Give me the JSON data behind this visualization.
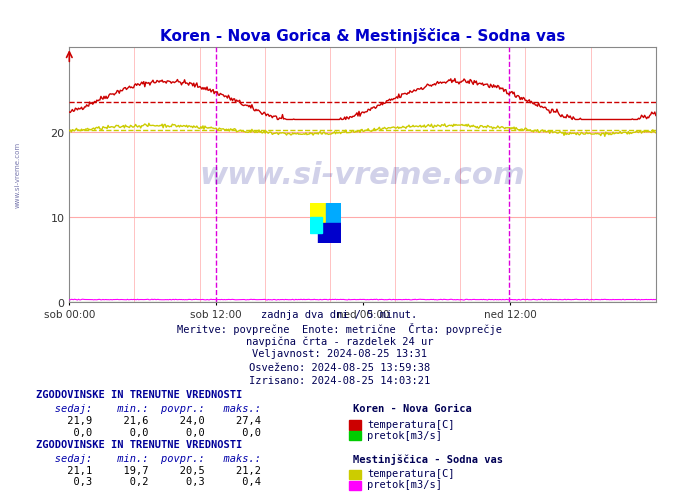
{
  "title": "Koren - Nova Gorica & Mestinjščica - Sodna vas",
  "title_color": "#0000cc",
  "bg_color": "#ffffff",
  "plot_bg_color": "#ffffff",
  "grid_color_h": "#ffaaaa",
  "grid_color_v": "#ffaaaa",
  "ylim": [
    0,
    30
  ],
  "yticks": [
    0,
    10,
    20
  ],
  "n_points": 576,
  "x_tick_labels": [
    "sob 00:00",
    "sob 12:00",
    "ned 00:00",
    "ned 12:00"
  ],
  "x_tick_positions": [
    0,
    144,
    288,
    432
  ],
  "vline_positions": [
    144,
    431
  ],
  "vline_color": "#dd00dd",
  "temp_koren_color": "#cc0000",
  "temp_mestinjscica_color": "#cccc00",
  "pretok_koren_color": "#00cc00",
  "pretok_mestinjscica_color": "#ff00ff",
  "info_lines": [
    "zadnja dva dni / 5 minut.",
    "Meritve: povprečne  Enote: metrične  Črta: povprečje",
    "navpična črta - razdelek 24 ur",
    "Veljavnost: 2024-08-25 13:31",
    "Osveženo: 2024-08-25 13:59:38",
    "Izrisano: 2024-08-25 14:03:21"
  ],
  "table1_title": "ZGODOVINSKE IN TRENUTNE VREDNOSTI",
  "table1_subtitle": "Koren - Nova Gorica",
  "table1_headers": [
    "sedaj:",
    "min.:",
    "povpr.:",
    "maks.:"
  ],
  "table1_row1": [
    "21,9",
    "21,6",
    "24,0",
    "27,4"
  ],
  "table1_row2": [
    "0,0",
    "0,0",
    "0,0",
    "0,0"
  ],
  "table1_labels": [
    "temperatura[C]",
    "pretok[m3/s]"
  ],
  "table1_colors": [
    "#cc0000",
    "#00cc00"
  ],
  "table2_title": "ZGODOVINSKE IN TRENUTNE VREDNOSTI",
  "table2_subtitle": "Mestinjščica - Sodna vas",
  "table2_headers": [
    "sedaj:",
    "min.:",
    "povpr.:",
    "maks.:"
  ],
  "table2_row1": [
    "21,1",
    "19,7",
    "20,5",
    "21,2"
  ],
  "table2_row2": [
    "0,3",
    "0,2",
    "0,3",
    "0,4"
  ],
  "table2_labels": [
    "temperatura[C]",
    "pretok[m3/s]"
  ],
  "table2_colors": [
    "#cccc00",
    "#ff00ff"
  ]
}
